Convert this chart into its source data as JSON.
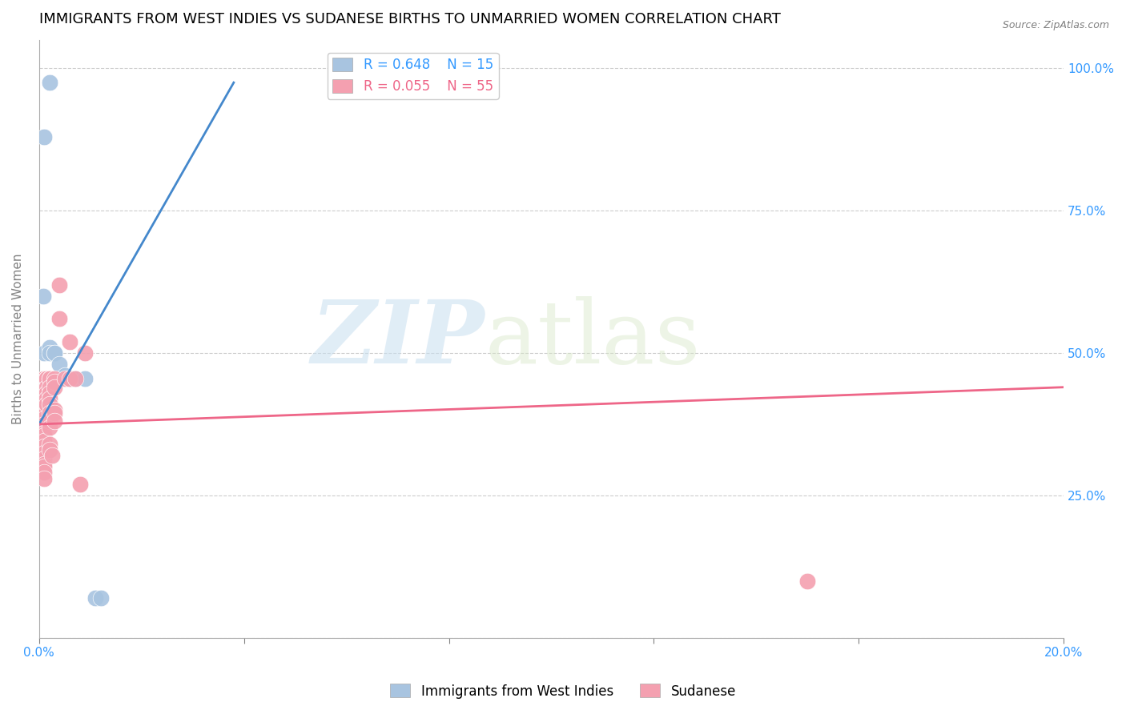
{
  "title": "IMMIGRANTS FROM WEST INDIES VS SUDANESE BIRTHS TO UNMARRIED WOMEN CORRELATION CHART",
  "source": "Source: ZipAtlas.com",
  "xlabel_label": "Immigrants from West Indies",
  "ylabel_label": "Births to Unmarried Women",
  "legend_label1": "Immigrants from West Indies",
  "legend_label2": "Sudanese",
  "R1": 0.648,
  "N1": 15,
  "R2": 0.055,
  "N2": 55,
  "blue_color": "#a8c4e0",
  "pink_color": "#f4a0b0",
  "blue_line_color": "#4488cc",
  "pink_line_color": "#ee6688",
  "blue_line": [
    [
      0.0,
      0.375
    ],
    [
      0.038,
      0.975
    ]
  ],
  "pink_line": [
    [
      0.0,
      0.375
    ],
    [
      0.2,
      0.44
    ]
  ],
  "blue_dots": [
    [
      0.001,
      0.88
    ],
    [
      0.002,
      0.975
    ],
    [
      0.0008,
      0.6
    ],
    [
      0.001,
      0.5
    ],
    [
      0.002,
      0.51
    ],
    [
      0.002,
      0.5
    ],
    [
      0.003,
      0.5
    ],
    [
      0.003,
      0.5
    ],
    [
      0.004,
      0.48
    ],
    [
      0.005,
      0.46
    ],
    [
      0.006,
      0.455
    ],
    [
      0.007,
      0.455
    ],
    [
      0.009,
      0.455
    ],
    [
      0.011,
      0.07
    ],
    [
      0.012,
      0.07
    ]
  ],
  "pink_dots": [
    [
      0.001,
      0.455
    ],
    [
      0.001,
      0.455
    ],
    [
      0.001,
      0.455
    ],
    [
      0.001,
      0.43
    ],
    [
      0.001,
      0.42
    ],
    [
      0.001,
      0.41
    ],
    [
      0.001,
      0.4
    ],
    [
      0.001,
      0.39
    ],
    [
      0.001,
      0.385
    ],
    [
      0.001,
      0.375
    ],
    [
      0.001,
      0.37
    ],
    [
      0.001,
      0.36
    ],
    [
      0.001,
      0.355
    ],
    [
      0.001,
      0.345
    ],
    [
      0.001,
      0.335
    ],
    [
      0.001,
      0.325
    ],
    [
      0.001,
      0.315
    ],
    [
      0.001,
      0.305
    ],
    [
      0.001,
      0.3
    ],
    [
      0.001,
      0.29
    ],
    [
      0.001,
      0.28
    ],
    [
      0.0015,
      0.455
    ],
    [
      0.0015,
      0.455
    ],
    [
      0.0015,
      0.455
    ],
    [
      0.0015,
      0.44
    ],
    [
      0.0015,
      0.43
    ],
    [
      0.0015,
      0.42
    ],
    [
      0.0015,
      0.41
    ],
    [
      0.002,
      0.455
    ],
    [
      0.002,
      0.455
    ],
    [
      0.002,
      0.44
    ],
    [
      0.002,
      0.43
    ],
    [
      0.002,
      0.42
    ],
    [
      0.002,
      0.41
    ],
    [
      0.002,
      0.395
    ],
    [
      0.002,
      0.38
    ],
    [
      0.002,
      0.37
    ],
    [
      0.002,
      0.34
    ],
    [
      0.002,
      0.33
    ],
    [
      0.0025,
      0.32
    ],
    [
      0.003,
      0.455
    ],
    [
      0.003,
      0.45
    ],
    [
      0.003,
      0.44
    ],
    [
      0.003,
      0.4
    ],
    [
      0.003,
      0.395
    ],
    [
      0.003,
      0.38
    ],
    [
      0.004,
      0.62
    ],
    [
      0.004,
      0.56
    ],
    [
      0.005,
      0.455
    ],
    [
      0.006,
      0.52
    ],
    [
      0.006,
      0.455
    ],
    [
      0.007,
      0.455
    ],
    [
      0.008,
      0.27
    ],
    [
      0.009,
      0.5
    ],
    [
      0.15,
      0.1
    ]
  ],
  "xmin": 0.0,
  "xmax": 0.2,
  "ymin": 0.0,
  "ymax": 1.05,
  "yticks": [
    0.0,
    0.25,
    0.5,
    0.75,
    1.0
  ],
  "ytick_labels": [
    "",
    "25.0%",
    "50.0%",
    "75.0%",
    "100.0%"
  ],
  "xticks": [
    0.0,
    0.04,
    0.08,
    0.12,
    0.16,
    0.2
  ],
  "xtick_labels": [
    "0.0%",
    "",
    "",
    "",
    "",
    "20.0%"
  ],
  "watermark_zip": "ZIP",
  "watermark_atlas": "atlas",
  "title_fontsize": 13,
  "axis_label_fontsize": 11,
  "tick_fontsize": 11,
  "legend_fontsize": 12
}
